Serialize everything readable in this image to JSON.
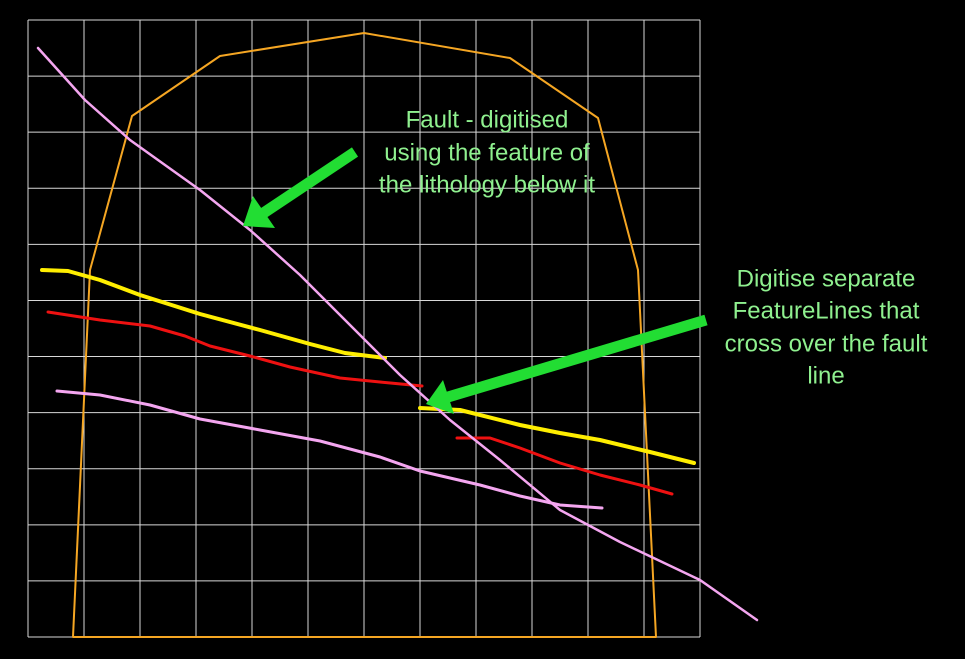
{
  "annotations": [
    {
      "lines": [
        "Fault - digitised",
        "using the feature of",
        "the lithology below it"
      ]
    },
    {
      "lines": [
        "Digitise separate",
        "FeatureLines that",
        "cross over the fault",
        "line"
      ]
    }
  ]
}
